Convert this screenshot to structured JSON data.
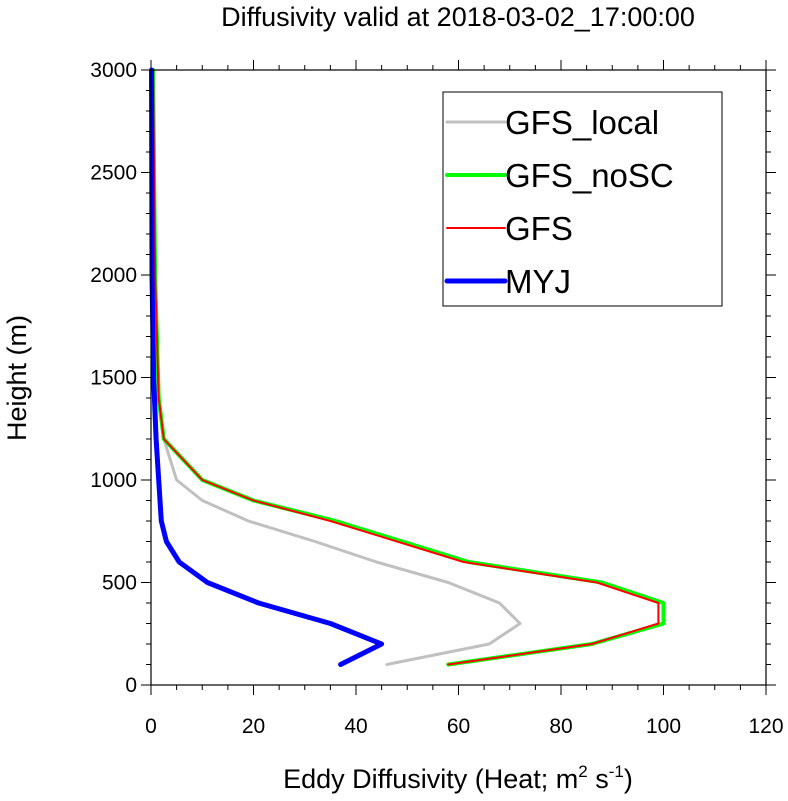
{
  "chart_data": {
    "type": "line",
    "title": "Diffusivity valid at 2018-03-02_17:00:00",
    "xlabel": "Eddy Diffusivity (Heat; m",
    "xlabel_sup1": "2",
    "xlabel_mid": " s",
    "xlabel_sup2": "-1",
    "xlabel_end": ")",
    "ylabel": "Height (m)",
    "xlim": [
      0,
      120
    ],
    "ylim": [
      0,
      3000
    ],
    "x_ticks": [
      0,
      20,
      40,
      60,
      80,
      100,
      120
    ],
    "x_tick_labels": [
      "0",
      "20",
      "40",
      "60",
      "80",
      "100",
      "120"
    ],
    "y_ticks": [
      0,
      500,
      1000,
      1500,
      2000,
      2500,
      3000
    ],
    "y_tick_labels": [
      "0",
      "500",
      "1000",
      "1500",
      "2000",
      "2500",
      "3000"
    ],
    "grid": false,
    "legend_position": "top-right",
    "series": [
      {
        "name": "GFS_local",
        "color": "#c0c0c0",
        "width": 3,
        "points": [
          [
            46,
            100
          ],
          [
            66,
            200
          ],
          [
            72,
            300
          ],
          [
            68,
            400
          ],
          [
            58,
            500
          ],
          [
            44,
            600
          ],
          [
            32,
            700
          ],
          [
            19,
            800
          ],
          [
            10,
            900
          ],
          [
            5,
            1000
          ],
          [
            2.5,
            1200
          ],
          [
            1.5,
            1400
          ],
          [
            0.8,
            1800
          ],
          [
            0.4,
            2400
          ],
          [
            0.2,
            3000
          ]
        ]
      },
      {
        "name": "GFS_noSC",
        "color": "#00ff00",
        "width": 4,
        "points": [
          [
            58,
            100
          ],
          [
            86,
            200
          ],
          [
            100,
            300
          ],
          [
            100,
            400
          ],
          [
            88,
            500
          ],
          [
            62,
            600
          ],
          [
            36,
            800
          ],
          [
            20,
            900
          ],
          [
            10,
            1000
          ],
          [
            2.5,
            1200
          ],
          [
            1.5,
            1400
          ],
          [
            0.8,
            2000
          ],
          [
            0.4,
            3000
          ]
        ]
      },
      {
        "name": "GFS",
        "color": "#ff0000",
        "width": 2,
        "points": [
          [
            58,
            100
          ],
          [
            86,
            200
          ],
          [
            99,
            300
          ],
          [
            99,
            400
          ],
          [
            87,
            500
          ],
          [
            61,
            600
          ],
          [
            35,
            800
          ],
          [
            20,
            900
          ],
          [
            10,
            1000
          ],
          [
            2.5,
            1200
          ],
          [
            1.5,
            1400
          ],
          [
            0.8,
            2000
          ],
          [
            0.4,
            3000
          ]
        ]
      },
      {
        "name": "MYJ",
        "color": "#0000ff",
        "width": 5,
        "points": [
          [
            37,
            100
          ],
          [
            45,
            200
          ],
          [
            35,
            300
          ],
          [
            21,
            400
          ],
          [
            11,
            500
          ],
          [
            5.5,
            600
          ],
          [
            3,
            700
          ],
          [
            2,
            800
          ],
          [
            1.5,
            1000
          ],
          [
            1,
            1200
          ],
          [
            0.5,
            1500
          ],
          [
            0.2,
            2000
          ],
          [
            0.1,
            3000
          ]
        ]
      }
    ]
  }
}
